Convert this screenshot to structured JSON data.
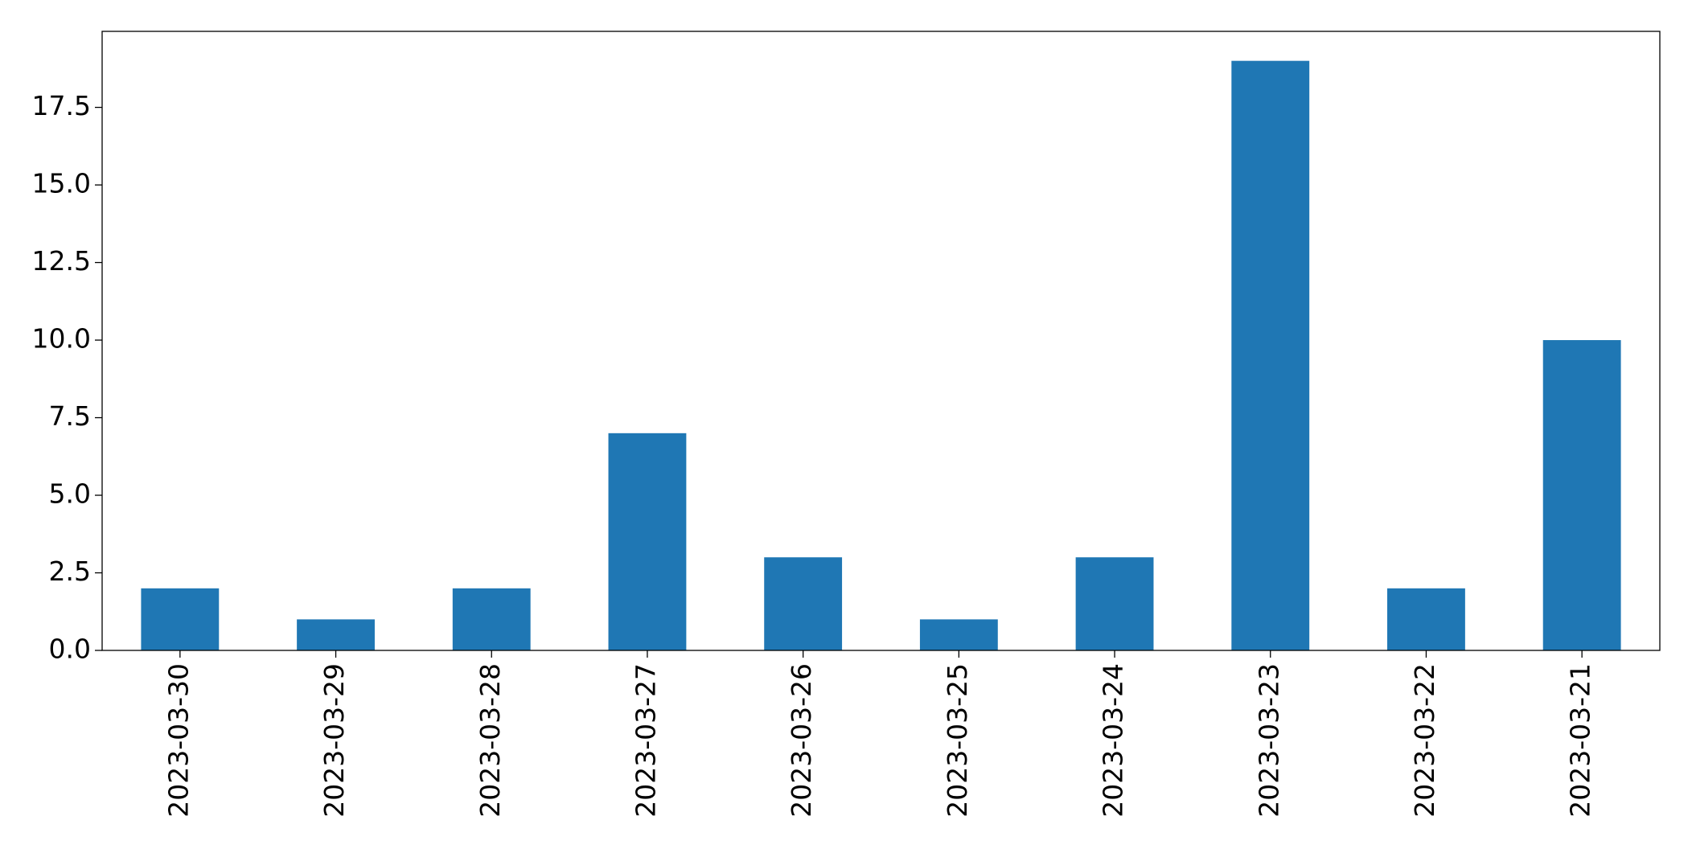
{
  "chart_data": {
    "type": "bar",
    "categories": [
      "2023-03-30",
      "2023-03-29",
      "2023-03-28",
      "2023-03-27",
      "2023-03-26",
      "2023-03-25",
      "2023-03-24",
      "2023-03-23",
      "2023-03-22",
      "2023-03-21"
    ],
    "values": [
      2,
      1,
      2,
      7,
      3,
      1,
      3,
      19,
      2,
      10
    ],
    "color": "#1f77b4",
    "ylim": [
      0,
      19.95
    ],
    "yticks": [
      {
        "value": 0,
        "label": "0.0"
      },
      2.5,
      {
        "value": 5,
        "label": "5.0"
      },
      7.5,
      {
        "value": 10,
        "label": "10.0"
      },
      12.5,
      {
        "value": 15,
        "label": "15.0"
      },
      17.5
    ],
    "grid": false
  }
}
